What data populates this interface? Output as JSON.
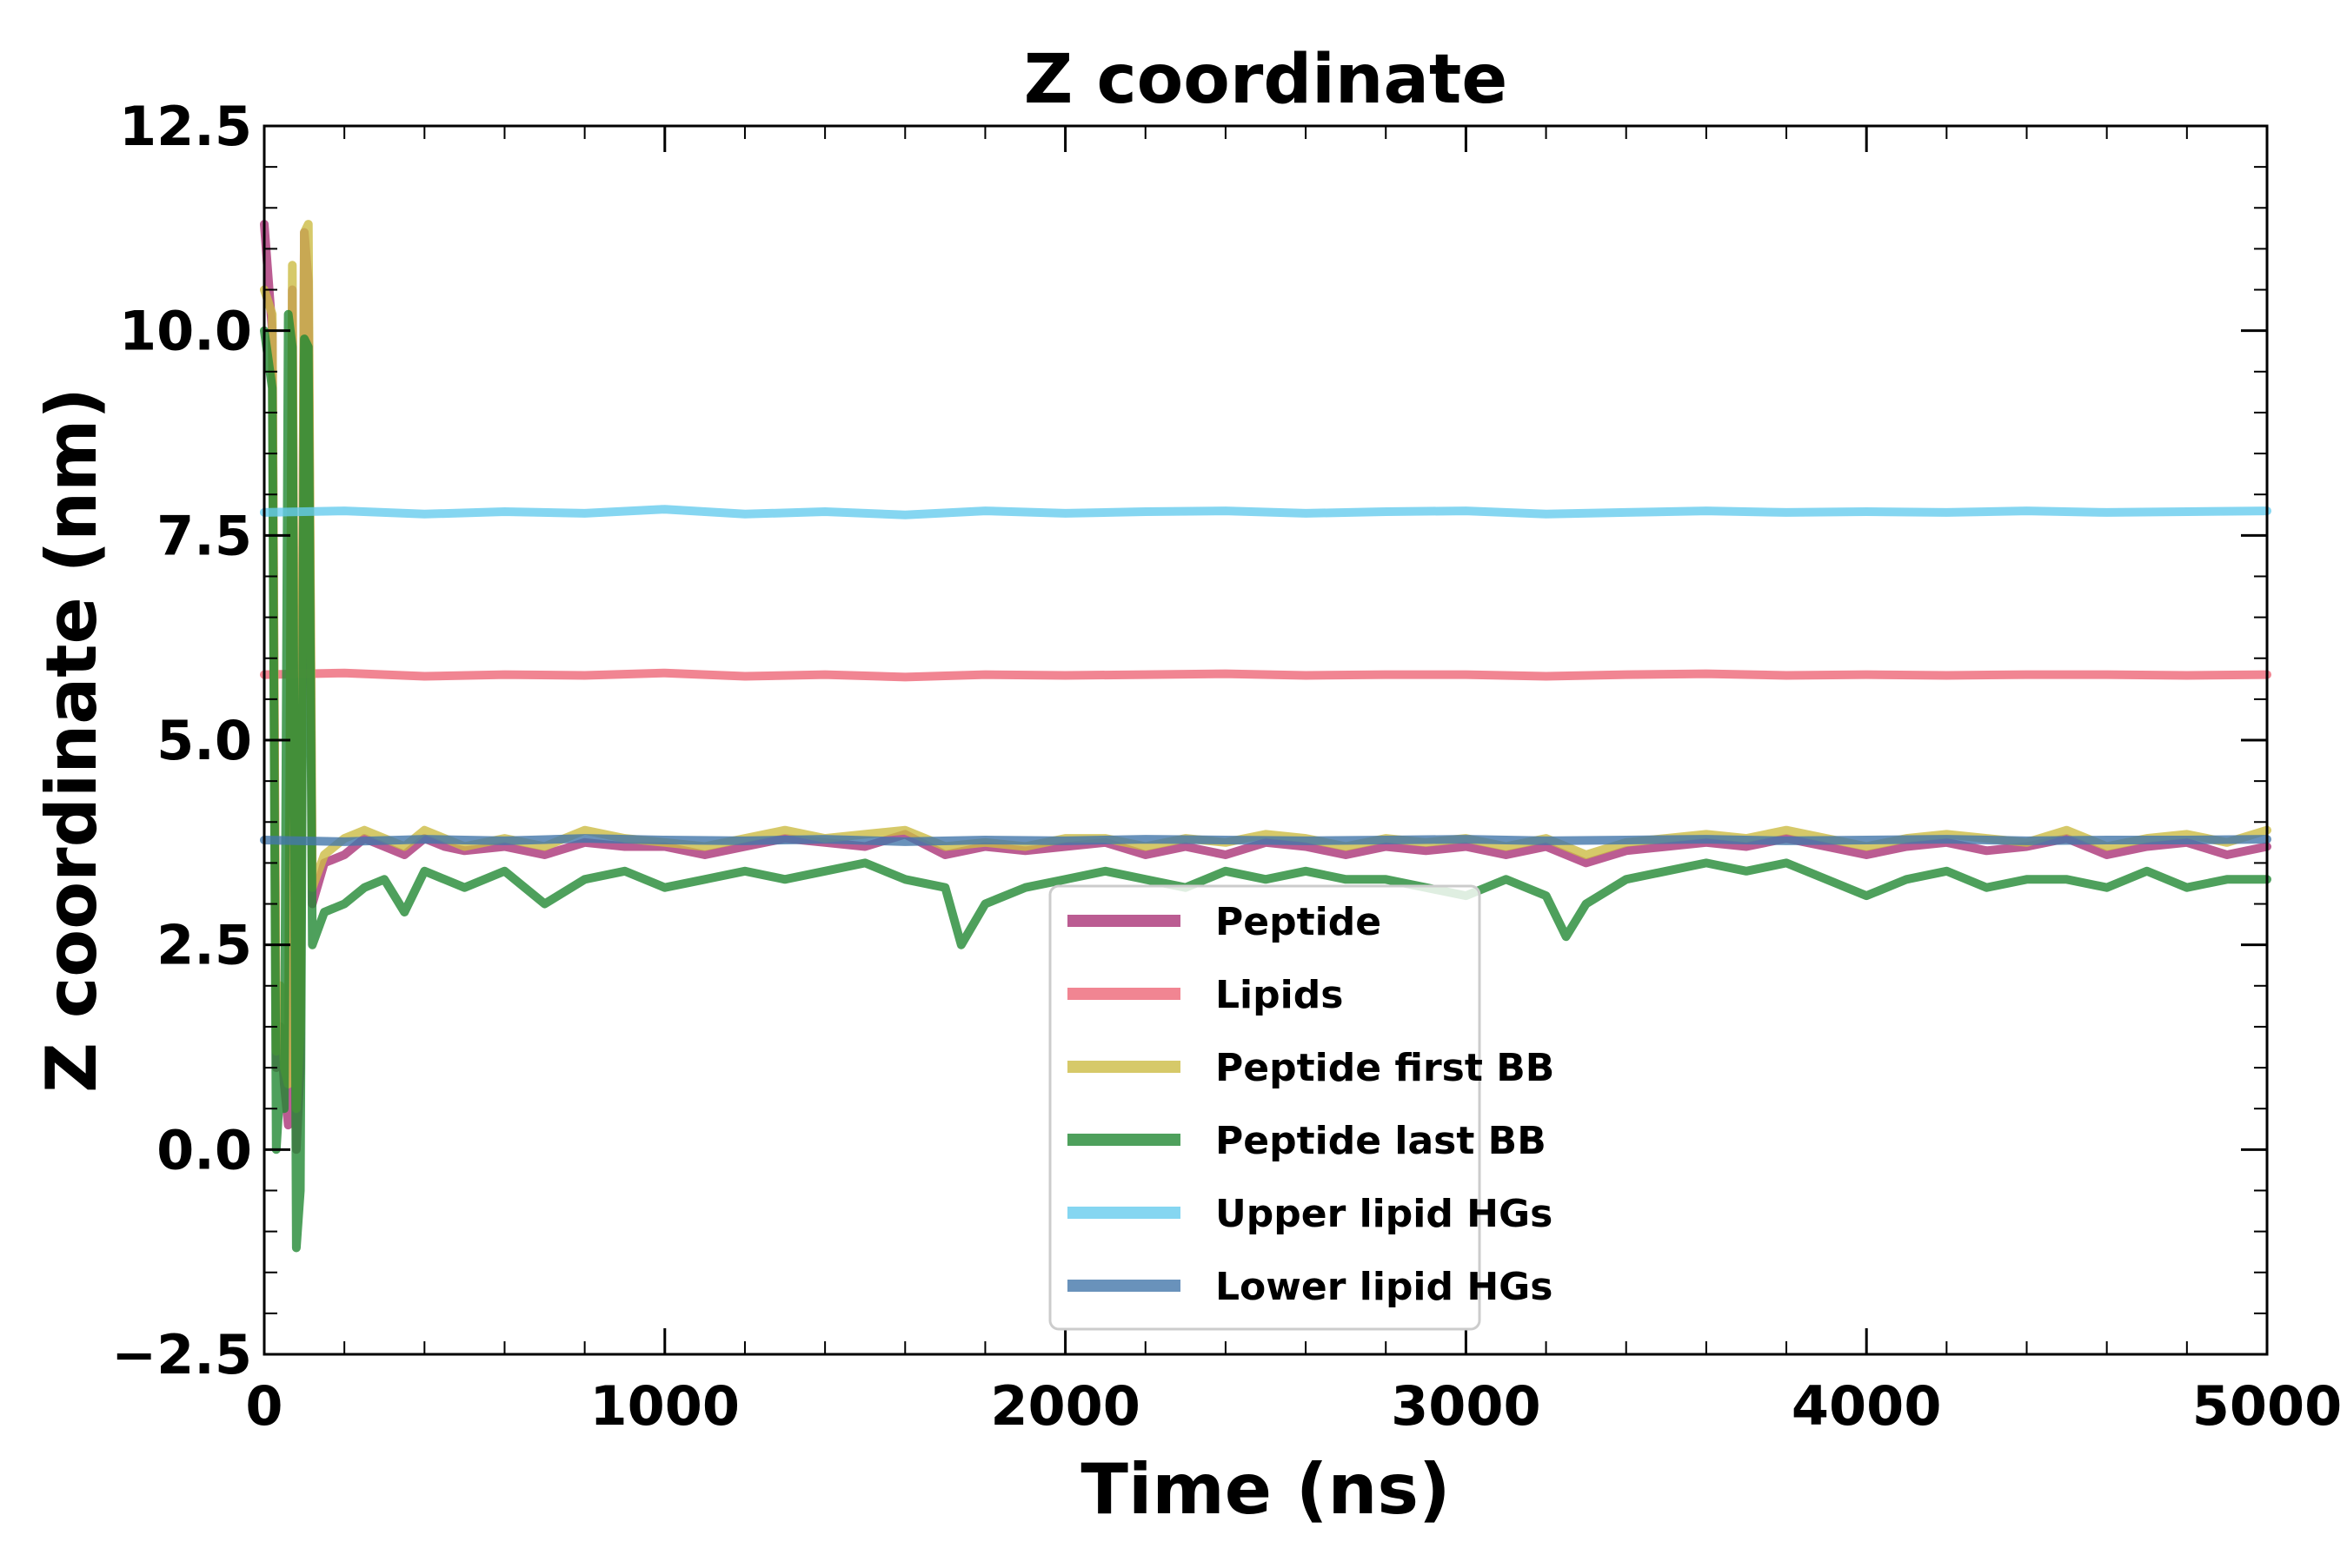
{
  "chart_data": {
    "type": "line",
    "title": "Z coordinate",
    "xlabel": "Time (ns)",
    "ylabel": "Z coordinate (nm)",
    "xlim": [
      0,
      5000
    ],
    "ylim": [
      -2.5,
      12.5
    ],
    "xticks": [
      0,
      1000,
      2000,
      3000,
      4000,
      5000
    ],
    "yticks": [
      -2.5,
      0.0,
      2.5,
      5.0,
      7.5,
      10.0,
      12.5
    ],
    "xtick_labels": [
      "0",
      "1000",
      "2000",
      "3000",
      "4000",
      "5000"
    ],
    "ytick_labels": [
      "−2.5",
      "0.0",
      "2.5",
      "5.0",
      "7.5",
      "10.0",
      "12.5"
    ],
    "grid": false,
    "legend_position": "bottom-center",
    "series": [
      {
        "name": "Peptide",
        "color": "#aa3377",
        "x": [
          0,
          20,
          30,
          40,
          50,
          60,
          70,
          80,
          90,
          100,
          110,
          120,
          150,
          200,
          250,
          300,
          350,
          400,
          450,
          500,
          600,
          700,
          800,
          900,
          1000,
          1100,
          1200,
          1300,
          1400,
          1500,
          1600,
          1700,
          1800,
          1900,
          2000,
          2100,
          2200,
          2300,
          2400,
          2500,
          2600,
          2700,
          2800,
          2900,
          3000,
          3100,
          3200,
          3300,
          3400,
          3500,
          3600,
          3700,
          3800,
          3900,
          4000,
          4100,
          4200,
          4300,
          4400,
          4500,
          4600,
          4700,
          4800,
          4900,
          5000
        ],
        "y": [
          11.3,
          10.0,
          1.0,
          1.5,
          0.8,
          0.3,
          10.5,
          0.0,
          1.0,
          11.2,
          10.6,
          3.0,
          3.5,
          3.6,
          3.8,
          3.7,
          3.6,
          3.8,
          3.7,
          3.65,
          3.7,
          3.6,
          3.75,
          3.7,
          3.7,
          3.6,
          3.7,
          3.8,
          3.75,
          3.7,
          3.85,
          3.6,
          3.7,
          3.65,
          3.7,
          3.75,
          3.6,
          3.7,
          3.6,
          3.75,
          3.7,
          3.6,
          3.7,
          3.65,
          3.7,
          3.6,
          3.7,
          3.5,
          3.65,
          3.7,
          3.75,
          3.7,
          3.8,
          3.7,
          3.6,
          3.7,
          3.75,
          3.65,
          3.7,
          3.8,
          3.6,
          3.7,
          3.75,
          3.6,
          3.7
        ]
      },
      {
        "name": "Lipids",
        "color": "#ee6677",
        "x": [
          0,
          200,
          400,
          600,
          800,
          1000,
          1200,
          1400,
          1600,
          1800,
          2000,
          2200,
          2400,
          2600,
          2800,
          3000,
          3200,
          3400,
          3600,
          3800,
          4000,
          4200,
          4400,
          4600,
          4800,
          5000
        ],
        "y": [
          5.8,
          5.82,
          5.78,
          5.8,
          5.79,
          5.82,
          5.78,
          5.8,
          5.77,
          5.8,
          5.79,
          5.8,
          5.81,
          5.79,
          5.8,
          5.8,
          5.78,
          5.8,
          5.81,
          5.79,
          5.8,
          5.79,
          5.8,
          5.8,
          5.79,
          5.8
        ]
      },
      {
        "name": "Peptide first BB",
        "color": "#ccbb44",
        "x": [
          0,
          20,
          30,
          40,
          50,
          60,
          70,
          80,
          90,
          100,
          110,
          120,
          150,
          200,
          250,
          300,
          350,
          400,
          450,
          500,
          600,
          700,
          800,
          900,
          1000,
          1100,
          1200,
          1300,
          1400,
          1500,
          1600,
          1700,
          1800,
          1900,
          2000,
          2100,
          2200,
          2300,
          2400,
          2500,
          2600,
          2700,
          2800,
          2900,
          3000,
          3100,
          3200,
          3300,
          3400,
          3500,
          3600,
          3700,
          3800,
          3900,
          4000,
          4100,
          4200,
          4300,
          4400,
          4500,
          4600,
          4700,
          4800,
          4900,
          5000
        ],
        "y": [
          10.5,
          10.2,
          1.2,
          2.0,
          1.0,
          0.8,
          10.8,
          0.5,
          1.5,
          11.2,
          11.3,
          3.2,
          3.6,
          3.8,
          3.9,
          3.8,
          3.7,
          3.9,
          3.8,
          3.7,
          3.8,
          3.7,
          3.9,
          3.8,
          3.75,
          3.7,
          3.8,
          3.9,
          3.8,
          3.85,
          3.9,
          3.7,
          3.75,
          3.7,
          3.8,
          3.8,
          3.7,
          3.8,
          3.75,
          3.85,
          3.8,
          3.7,
          3.8,
          3.75,
          3.8,
          3.7,
          3.8,
          3.6,
          3.75,
          3.8,
          3.85,
          3.8,
          3.9,
          3.8,
          3.7,
          3.8,
          3.85,
          3.8,
          3.75,
          3.9,
          3.7,
          3.8,
          3.85,
          3.75,
          3.9
        ]
      },
      {
        "name": "Peptide last BB",
        "color": "#228833",
        "x": [
          0,
          20,
          30,
          40,
          50,
          60,
          70,
          80,
          90,
          100,
          110,
          120,
          150,
          200,
          250,
          300,
          350,
          400,
          450,
          500,
          600,
          700,
          800,
          900,
          1000,
          1100,
          1200,
          1300,
          1400,
          1500,
          1600,
          1700,
          1740,
          1800,
          1900,
          2000,
          2100,
          2200,
          2300,
          2400,
          2500,
          2600,
          2700,
          2800,
          2900,
          3000,
          3100,
          3200,
          3250,
          3300,
          3400,
          3500,
          3600,
          3700,
          3800,
          3900,
          4000,
          4100,
          4200,
          4300,
          4400,
          4500,
          4600,
          4700,
          4800,
          4900,
          5000
        ],
        "y": [
          10.0,
          9.3,
          0.0,
          0.8,
          0.5,
          10.2,
          9.8,
          -1.2,
          -0.5,
          9.9,
          9.8,
          2.5,
          2.9,
          3.0,
          3.2,
          3.3,
          2.9,
          3.4,
          3.3,
          3.2,
          3.4,
          3.0,
          3.3,
          3.4,
          3.2,
          3.3,
          3.4,
          3.3,
          3.4,
          3.5,
          3.3,
          3.2,
          2.5,
          3.0,
          3.2,
          3.3,
          3.4,
          3.3,
          3.2,
          3.4,
          3.3,
          3.4,
          3.3,
          3.3,
          3.2,
          3.1,
          3.3,
          3.1,
          2.6,
          3.0,
          3.3,
          3.4,
          3.5,
          3.4,
          3.5,
          3.3,
          3.1,
          3.3,
          3.4,
          3.2,
          3.3,
          3.3,
          3.2,
          3.4,
          3.2,
          3.3,
          3.3
        ]
      },
      {
        "name": "Upper lipid HGs",
        "color": "#66ccee",
        "x": [
          0,
          200,
          400,
          600,
          800,
          1000,
          1200,
          1400,
          1600,
          1800,
          2000,
          2200,
          2400,
          2600,
          2800,
          3000,
          3200,
          3400,
          3600,
          3800,
          4000,
          4200,
          4400,
          4600,
          4800,
          5000
        ],
        "y": [
          7.78,
          7.8,
          7.76,
          7.79,
          7.77,
          7.82,
          7.76,
          7.79,
          7.75,
          7.8,
          7.77,
          7.79,
          7.8,
          7.77,
          7.79,
          7.8,
          7.76,
          7.78,
          7.8,
          7.78,
          7.79,
          7.78,
          7.8,
          7.78,
          7.79,
          7.8
        ]
      },
      {
        "name": "Lower lipid HGs",
        "color": "#4477aa",
        "x": [
          0,
          200,
          400,
          600,
          800,
          1000,
          1200,
          1400,
          1600,
          1800,
          2000,
          2200,
          2400,
          2600,
          2800,
          3000,
          3200,
          3400,
          3600,
          3800,
          4000,
          4200,
          4400,
          4600,
          4800,
          5000
        ],
        "y": [
          3.78,
          3.76,
          3.79,
          3.77,
          3.8,
          3.78,
          3.77,
          3.79,
          3.76,
          3.78,
          3.77,
          3.79,
          3.78,
          3.77,
          3.78,
          3.79,
          3.77,
          3.78,
          3.79,
          3.77,
          3.78,
          3.79,
          3.77,
          3.78,
          3.78,
          3.79
        ]
      }
    ]
  }
}
